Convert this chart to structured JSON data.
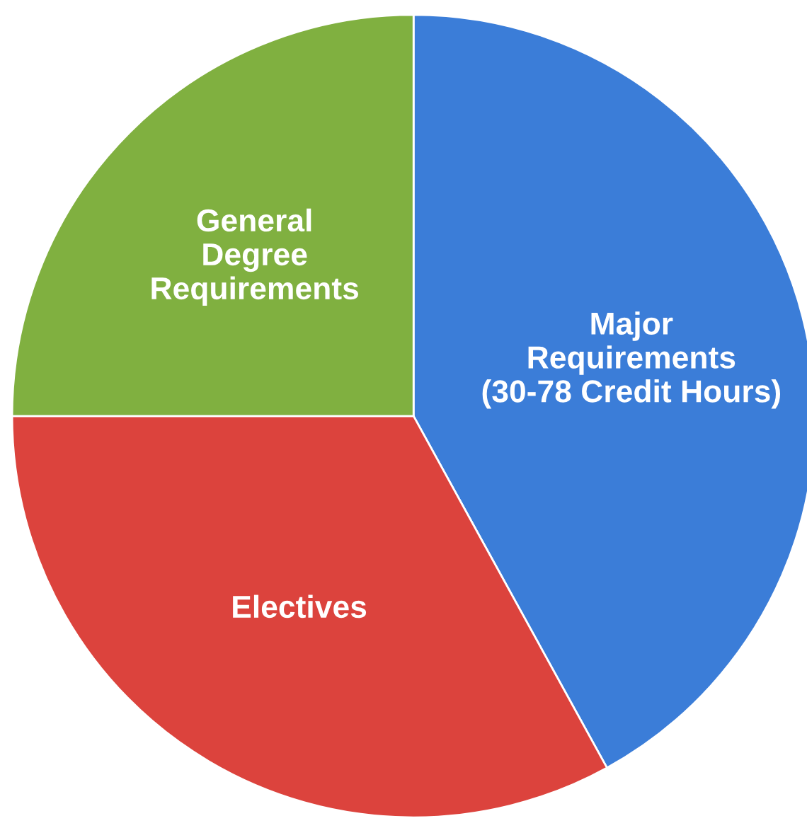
{
  "chart_data": {
    "type": "pie",
    "categories": [
      "Major\nRequirements\n(30-78 Credit Hours)",
      "Electives",
      "General\nDegree\nRequirements"
    ],
    "values": [
      42,
      33,
      25
    ],
    "colors": [
      "#3b7dd8",
      "#dc433d",
      "#80b040"
    ]
  }
}
